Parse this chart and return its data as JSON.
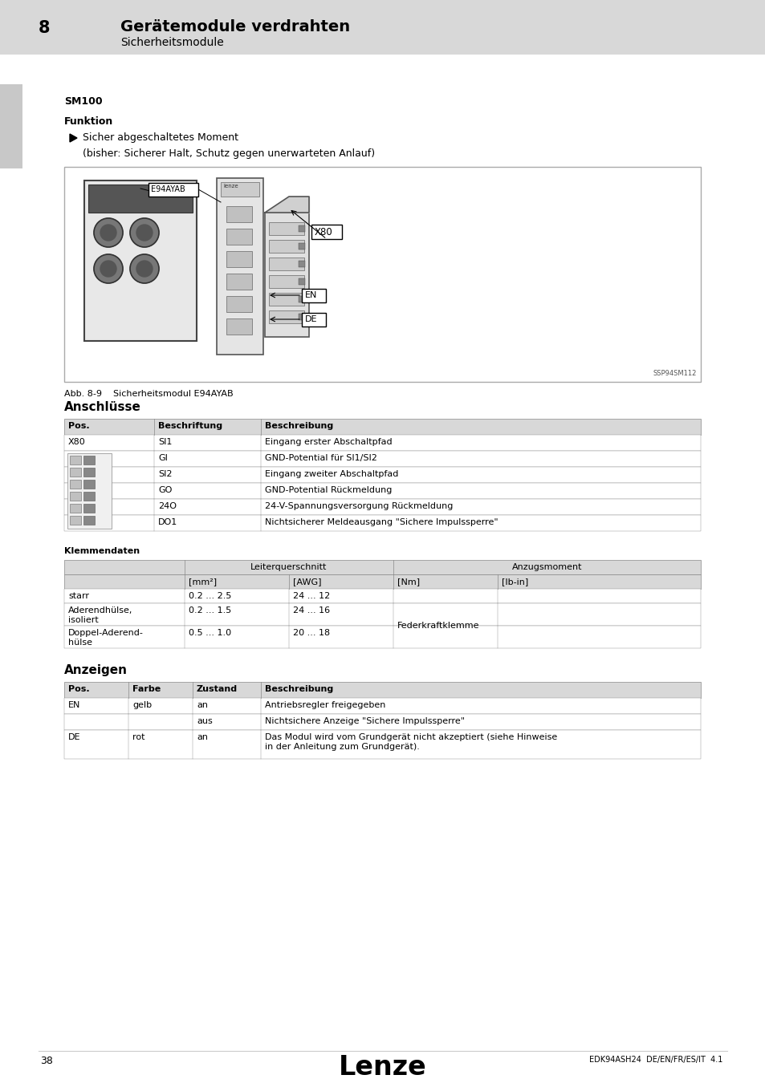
{
  "page_bg": "#ffffff",
  "header_bg": "#d8d8d8",
  "header_number": "8",
  "header_title": "Gerätemodule verdrahten",
  "header_subtitle": "Sicherheitsmodule",
  "left_tab_color": "#c8c8c8",
  "section_title": "SM100",
  "section_funktion": "Funktion",
  "bullet_text1": "Sicher abgeschaltetes Moment",
  "bullet_text2": "(bisher: Sicherer Halt, Schutz gegen unerwarteten Anlauf)",
  "fig_caption": "Abb. 8-9    Sicherheitsmodul E94AYAB",
  "fig_ref": "SSP94SM112",
  "anschlusse_title": "Anschlüsse",
  "anschlusse_cols": [
    "Pos.",
    "Beschriftung",
    "Beschreibung"
  ],
  "anschlusse_rows": [
    [
      "X80",
      "SI1",
      "Eingang erster Abschaltpfad"
    ],
    [
      "",
      "GI",
      "GND-Potential für SI1/SI2"
    ],
    [
      "",
      "SI2",
      "Eingang zweiter Abschaltpfad"
    ],
    [
      "",
      "GO",
      "GND-Potential Rückmeldung"
    ],
    [
      "",
      "24O",
      "24-V-Spannungsversorgung Rückmeldung"
    ],
    [
      "",
      "DO1",
      "Nichtsicherer Meldeausgang \"Sichere Impulssperre\""
    ]
  ],
  "klemmen_title": "Klemmendaten",
  "klemmen_rows": [
    [
      "starr",
      "0.2 ... 2.5",
      "24 ... 12"
    ],
    [
      "Aderendhülse,\nisoliert",
      "0.2 ... 1.5",
      "24 ... 16"
    ],
    [
      "Doppel-Aderend-\nhülse",
      "0.5 ... 1.0",
      "20 ... 18"
    ]
  ],
  "federkraft": "Federkraftklemme",
  "anzeigen_title": "Anzeigen",
  "anzeigen_cols": [
    "Pos.",
    "Farbe",
    "Zustand",
    "Beschreibung"
  ],
  "anzeigen_rows": [
    [
      "EN",
      "gelb",
      "an",
      "Antriebsregler freigegeben"
    ],
    [
      "",
      "",
      "aus",
      "Nichtsichere Anzeige \"Sichere Impulssperre\""
    ],
    [
      "DE",
      "rot",
      "an",
      "Das Modul wird vom Grundgerät nicht akzeptiert (siehe Hinweise\nin der Anleitung zum Grundgerät)."
    ]
  ],
  "footer_page": "38",
  "footer_logo": "Lenze",
  "footer_ref": "EDK94ASH24  DE/EN/FR/ES/IT  4.1",
  "table_header_bg": "#d8d8d8",
  "table_border": "#888888"
}
